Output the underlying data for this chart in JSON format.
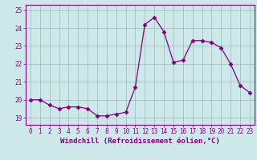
{
  "x": [
    0,
    1,
    2,
    3,
    4,
    5,
    6,
    7,
    8,
    9,
    10,
    11,
    12,
    13,
    14,
    15,
    16,
    17,
    18,
    19,
    20,
    21,
    22,
    23
  ],
  "y": [
    20.0,
    20.0,
    19.7,
    19.5,
    19.6,
    19.6,
    19.5,
    19.1,
    19.1,
    19.2,
    19.3,
    20.7,
    24.2,
    24.6,
    23.8,
    22.1,
    22.2,
    23.3,
    23.3,
    23.2,
    22.9,
    22.0,
    20.8,
    20.4
  ],
  "line_color": "#800080",
  "marker": "D",
  "marker_size": 2.5,
  "bg_color": "#cce8e8",
  "grid_color": "#9cb8b8",
  "xlabel": "Windchill (Refroidissement éolien,°C)",
  "ylim": [
    18.6,
    25.3
  ],
  "xlim": [
    -0.5,
    23.5
  ],
  "yticks": [
    19,
    20,
    21,
    22,
    23,
    24,
    25
  ],
  "xticks": [
    0,
    1,
    2,
    3,
    4,
    5,
    6,
    7,
    8,
    9,
    10,
    11,
    12,
    13,
    14,
    15,
    16,
    17,
    18,
    19,
    20,
    21,
    22,
    23
  ],
  "tick_color": "#800080",
  "label_color": "#800080",
  "spine_color": "#800080",
  "tick_fontsize": 5.5,
  "xlabel_fontsize": 6.5
}
